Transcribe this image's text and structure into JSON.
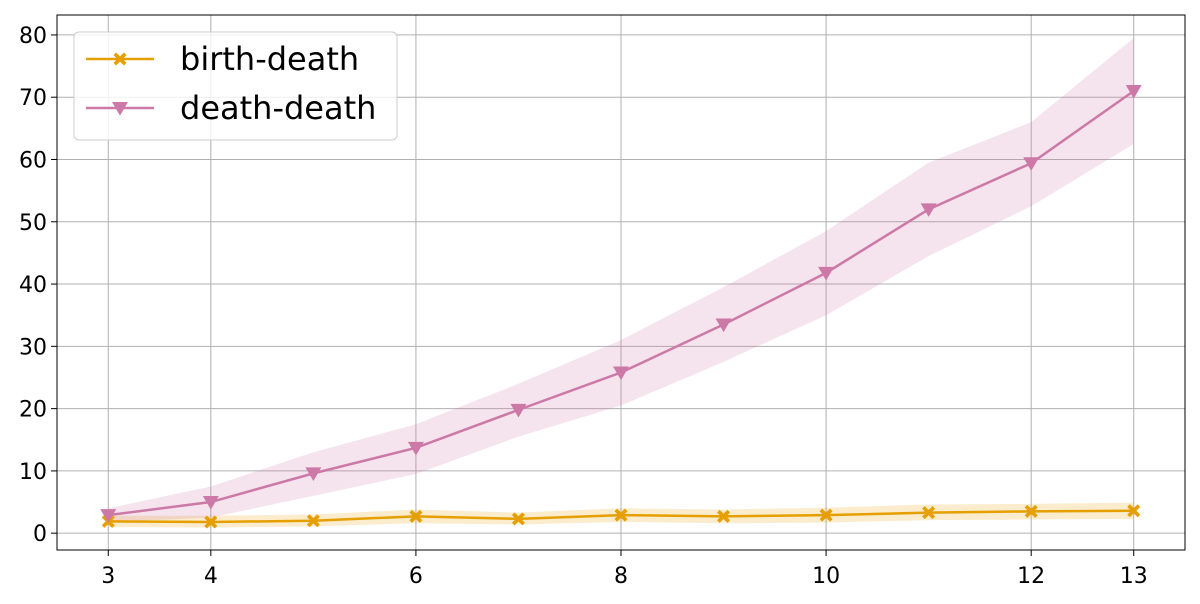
{
  "chart_data": {
    "type": "line",
    "x": [
      3,
      4,
      5,
      6,
      7,
      8,
      9,
      10,
      11,
      12,
      13
    ],
    "xlim": [
      2.5,
      13.5
    ],
    "xticks": [
      3,
      4,
      6,
      8,
      10,
      12,
      13
    ],
    "ylim": [
      -2.7,
      83.2
    ],
    "yticks": [
      0,
      10,
      20,
      30,
      40,
      50,
      60,
      70,
      80
    ],
    "grid": true,
    "legend": "upper left",
    "series": [
      {
        "name": "birth-death",
        "color": "#e69f00",
        "marker": "X",
        "values": [
          1.9,
          1.8,
          2.0,
          2.7,
          2.3,
          2.9,
          2.7,
          2.9,
          3.3,
          3.5,
          3.6
        ],
        "lower": [
          1.0,
          0.9,
          1.1,
          1.6,
          1.4,
          1.8,
          1.6,
          1.7,
          2.1,
          2.2,
          2.3
        ],
        "upper": [
          2.8,
          2.8,
          3.0,
          3.8,
          3.3,
          4.0,
          3.8,
          4.1,
          4.6,
          4.7,
          4.9
        ]
      },
      {
        "name": "death-death",
        "color": "#cc79a7",
        "marker": "v",
        "values": [
          2.9,
          5.0,
          9.6,
          13.7,
          19.8,
          25.8,
          33.5,
          41.8,
          52.0,
          59.4,
          71.0
        ],
        "lower": [
          1.8,
          2.5,
          6.0,
          9.5,
          15.5,
          20.5,
          27.5,
          35.0,
          44.5,
          52.5,
          62.5
        ],
        "upper": [
          4.0,
          7.5,
          13.0,
          17.5,
          24.0,
          31.0,
          39.5,
          48.5,
          59.5,
          66.0,
          79.5
        ]
      }
    ]
  }
}
